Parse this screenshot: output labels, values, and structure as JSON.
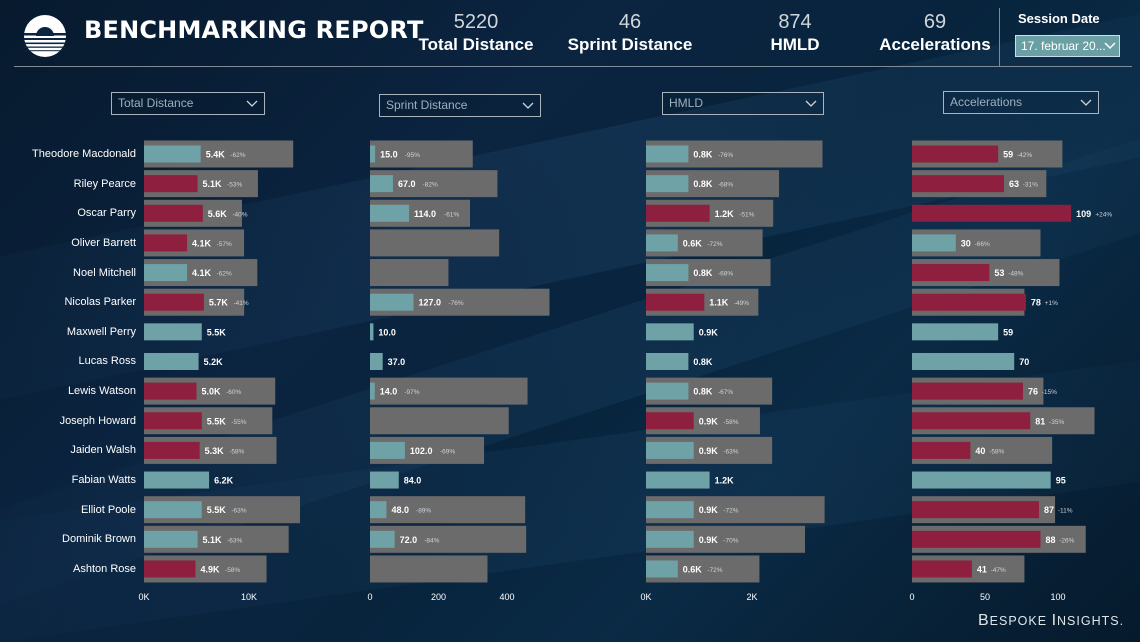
{
  "header": {
    "title": "BENCHMARKING REPORT",
    "kpis": [
      {
        "value": "5220",
        "label": "Total Distance"
      },
      {
        "value": "46",
        "label": "Sprint Distance"
      },
      {
        "value": "874",
        "label": "HMLD"
      },
      {
        "value": "69",
        "label": "Accelerations"
      }
    ],
    "session_label": "Session Date",
    "session_value": "17. februar 20..."
  },
  "brand": {
    "first_letter": "B",
    "rest1": "ESPOKE ",
    "letter2": "I",
    "rest2": "NSIGHTS."
  },
  "colors": {
    "teal": "#6fa2a6",
    "red": "#8e1f3e",
    "gray": "#6b6b6b",
    "label_light": "#cfd3d6"
  },
  "players": [
    "Theodore Macdonald",
    "Riley Pearce",
    "Oscar Parry",
    "Oliver Barrett",
    "Noel Mitchell",
    "Nicolas Parker",
    "Maxwell Perry",
    "Lucas Ross",
    "Lewis Watson",
    "Joseph Howard",
    "Jaiden Walsh",
    "Fabian Watts",
    "Elliot Poole",
    "Dominik Brown",
    "Ashton Rose"
  ],
  "chart_data": [
    {
      "type": "bar",
      "title": "Total Distance",
      "xlim": [
        0,
        10000
      ],
      "ticks": [
        0,
        10000
      ],
      "tick_labels": [
        "0K",
        "10K"
      ],
      "values": [
        5400,
        5100,
        5600,
        4100,
        4100,
        5700,
        5500,
        5200,
        5000,
        5500,
        5300,
        6200,
        5500,
        5100,
        4900
      ],
      "benchmark": [
        14210,
        10850,
        9330,
        9530,
        10790,
        9540,
        null,
        null,
        12500,
        12220,
        12620,
        null,
        14860,
        13780,
        11670
      ],
      "value_labels": [
        "5.4K",
        "5.1K",
        "5.6K",
        "4.1K",
        "4.1K",
        "5.7K",
        "5.5K",
        "5.2K",
        "5.0K",
        "5.5K",
        "5.3K",
        "6.2K",
        "5.5K",
        "5.1K",
        "4.9K"
      ],
      "pct_labels": [
        "-62%",
        "-53%",
        "-40%",
        "-57%",
        "-62%",
        "-41%",
        "",
        "",
        "-60%",
        "-55%",
        "-58%",
        "",
        "-63%",
        "-63%",
        "-58%"
      ],
      "colors": [
        "teal",
        "red",
        "red",
        "red",
        "teal",
        "red",
        "teal",
        "teal",
        "red",
        "red",
        "red",
        "teal",
        "teal",
        "teal",
        "red"
      ]
    },
    {
      "type": "bar",
      "title": "Sprint Distance",
      "xlim": [
        0,
        400
      ],
      "ticks": [
        0,
        200,
        400
      ],
      "tick_labels": [
        "0",
        "200",
        "400"
      ],
      "values": [
        15,
        67,
        114,
        0,
        0,
        127,
        10,
        37,
        14,
        0,
        102,
        84,
        48,
        72,
        0
      ],
      "benchmark": [
        300,
        372,
        292,
        377,
        229,
        524,
        null,
        null,
        460,
        405,
        333,
        null,
        453,
        456,
        343
      ],
      "value_labels": [
        "15.0",
        "67.0",
        "114.0",
        "",
        "",
        "127.0",
        "10.0",
        "37.0",
        "14.0",
        "",
        "102.0",
        "84.0",
        "48.0",
        "72.0",
        ""
      ],
      "pct_labels": [
        "-95%",
        "-82%",
        "-61%",
        "",
        "",
        "-76%",
        "",
        "",
        "-97%",
        "",
        "-69%",
        "",
        "-89%",
        "-84%",
        ""
      ],
      "colors": [
        "teal",
        "teal",
        "teal",
        "teal",
        "teal",
        "teal",
        "teal",
        "teal",
        "teal",
        "teal",
        "teal",
        "teal",
        "teal",
        "teal",
        "teal"
      ]
    },
    {
      "type": "bar",
      "title": "HMLD",
      "xlim": [
        0,
        2000
      ],
      "ticks": [
        0,
        2000
      ],
      "tick_labels": [
        "0K",
        "2K"
      ],
      "values": [
        800,
        800,
        1200,
        600,
        800,
        1100,
        900,
        800,
        800,
        900,
        900,
        1200,
        900,
        900,
        600
      ],
      "benchmark": [
        3330,
        2510,
        2400,
        2200,
        2350,
        2120,
        null,
        null,
        2380,
        2150,
        2380,
        null,
        3370,
        3000,
        2140
      ],
      "value_labels": [
        "0.8K",
        "0.8K",
        "1.2K",
        "0.6K",
        "0.8K",
        "1.1K",
        "0.9K",
        "0.8K",
        "0.8K",
        "0.9K",
        "0.9K",
        "1.2K",
        "0.9K",
        "0.9K",
        "0.6K"
      ],
      "pct_labels": [
        "-76%",
        "-68%",
        "-51%",
        "-72%",
        "-68%",
        "-49%",
        "",
        "",
        "-67%",
        "-58%",
        "-63%",
        "",
        "-72%",
        "-70%",
        "-72%"
      ],
      "colors": [
        "teal",
        "teal",
        "red",
        "teal",
        "teal",
        "red",
        "teal",
        "teal",
        "teal",
        "red",
        "teal",
        "teal",
        "teal",
        "teal",
        "teal"
      ]
    },
    {
      "type": "bar",
      "title": "Accelerations",
      "xlim": [
        0,
        100
      ],
      "ticks": [
        0,
        50,
        100
      ],
      "tick_labels": [
        "0",
        "50",
        "100"
      ],
      "values": [
        59,
        63,
        109,
        30,
        53,
        78,
        59,
        70,
        76,
        81,
        40,
        95,
        87,
        88,
        41
      ],
      "benchmark": [
        103,
        92,
        null,
        88,
        101,
        77,
        null,
        null,
        90,
        125,
        96,
        null,
        98,
        119,
        77
      ],
      "value_labels": [
        "59",
        "63",
        "109",
        "30",
        "53",
        "78",
        "59",
        "70",
        "76",
        "81",
        "40",
        "95",
        "87",
        "88",
        "41"
      ],
      "pct_labels": [
        "-42%",
        "-31%",
        "+24%",
        "-66%",
        "-48%",
        "+1%",
        "",
        "",
        "-15%",
        "-35%",
        "-58%",
        "",
        "-11%",
        "-26%",
        "-47%"
      ],
      "colors": [
        "red",
        "red",
        "red",
        "teal",
        "red",
        "red",
        "teal",
        "teal",
        "red",
        "red",
        "red",
        "teal",
        "red",
        "red",
        "red"
      ]
    }
  ]
}
